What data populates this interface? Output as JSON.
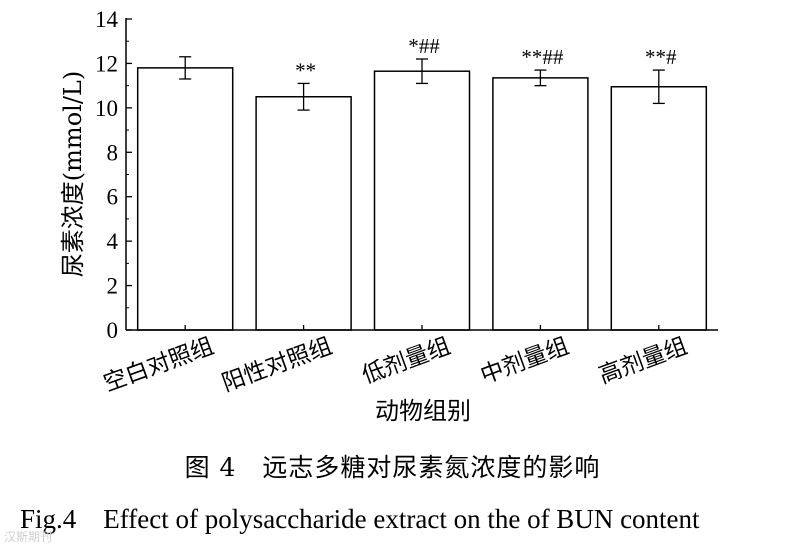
{
  "chart_data": {
    "type": "bar",
    "ylabel": "尿素浓度(mmol/L)",
    "xlabel": "动物组别",
    "ylim": [
      0,
      14
    ],
    "yticks": [
      0,
      2,
      4,
      6,
      8,
      10,
      12,
      14
    ],
    "categories": [
      "空白对照组",
      "阳性对照组",
      "低剂量组",
      "中剂量组",
      "高剂量组"
    ],
    "values": [
      11.8,
      10.5,
      11.65,
      11.35,
      10.95
    ],
    "errors": [
      0.5,
      0.6,
      0.55,
      0.35,
      0.75
    ],
    "annotations": [
      "",
      "**",
      "*##",
      "**##",
      "**#"
    ],
    "grid": false
  },
  "caption": {
    "cn": "图 4　远志多糖对尿素氮浓度的影响",
    "en": "Fig.4　Effect of polysaccharide extract on the of BUN content"
  },
  "watermark": "汉斯期刊"
}
